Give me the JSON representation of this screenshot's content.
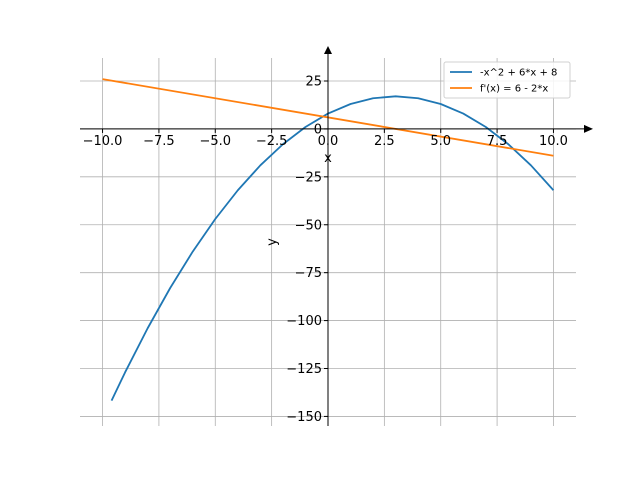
{
  "chart_data": {
    "type": "line",
    "xlim": [
      -11,
      11
    ],
    "ylim": [
      -155,
      37
    ],
    "grid": true,
    "legend_position": "top-right",
    "xlabel": "x",
    "ylabel": "y",
    "xticks": [
      {
        "value": -10.0,
        "label": "−10.0"
      },
      {
        "value": -7.5,
        "label": "−7.5"
      },
      {
        "value": -5.0,
        "label": "−5.0"
      },
      {
        "value": -2.5,
        "label": "−2.5"
      },
      {
        "value": 0.0,
        "label": "0.0"
      },
      {
        "value": 2.5,
        "label": "2.5"
      },
      {
        "value": 5.0,
        "label": "5.0"
      },
      {
        "value": 7.5,
        "label": "7.5"
      },
      {
        "value": 10.0,
        "label": "10.0"
      }
    ],
    "yticks": [
      {
        "value": 25,
        "label": "25"
      },
      {
        "value": 0,
        "label": "0"
      },
      {
        "value": -25,
        "label": "−25"
      },
      {
        "value": -50,
        "label": "−50"
      },
      {
        "value": -75,
        "label": "−75"
      },
      {
        "value": -100,
        "label": "−100"
      },
      {
        "value": -125,
        "label": "−125"
      },
      {
        "value": -150,
        "label": "−150"
      }
    ],
    "series": [
      {
        "name": "-x^2 + 6*x + 8",
        "color": "#1f77b4",
        "x": [
          -9.6,
          -9,
          -8,
          -7,
          -6,
          -5,
          -4,
          -3,
          -2,
          -1,
          0,
          1,
          2,
          3,
          4,
          5,
          6,
          7,
          8,
          9,
          10
        ],
        "y": [
          -141.76,
          -127,
          -104,
          -83,
          -64,
          -47,
          -32,
          -19,
          -8,
          1,
          8,
          13,
          16,
          17,
          16,
          13,
          8,
          1,
          -8,
          -19,
          -32
        ]
      },
      {
        "name": "f'(x) = 6 - 2*x",
        "color": "#ff7f0e",
        "x": [
          -10,
          10
        ],
        "y": [
          26,
          -14
        ]
      }
    ]
  }
}
